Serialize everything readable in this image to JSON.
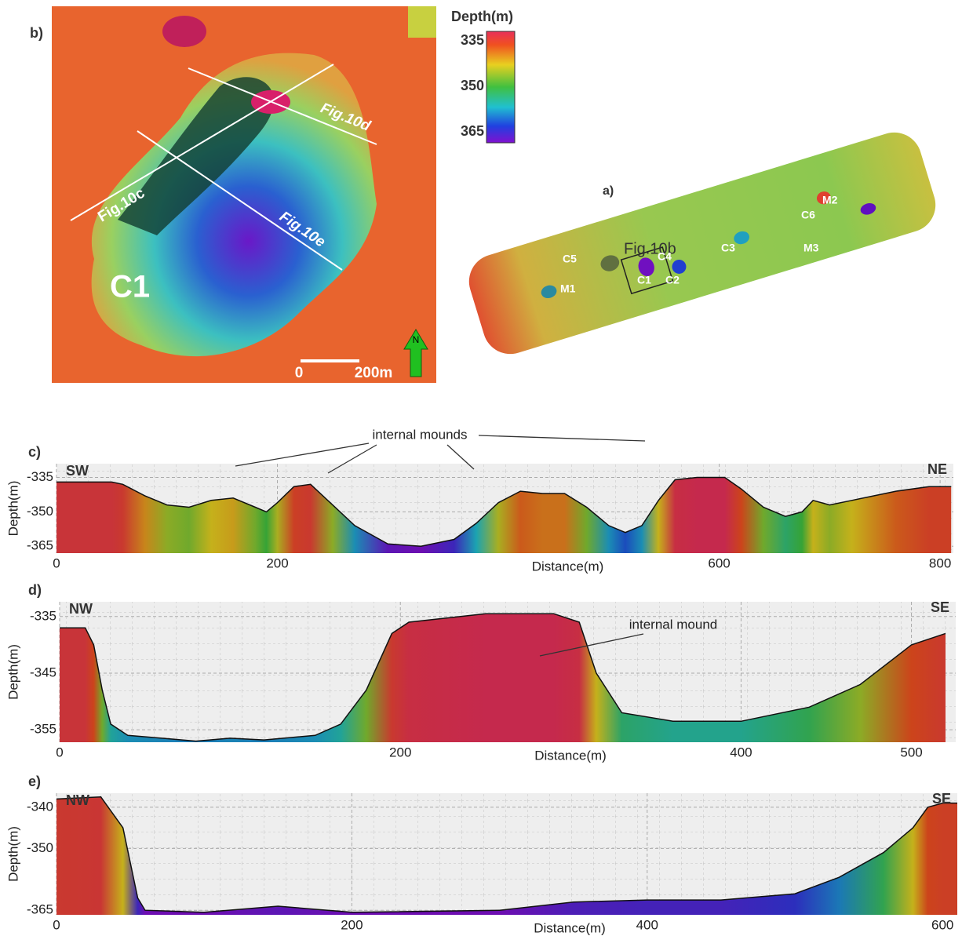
{
  "map_b": {
    "panel_label": "b)",
    "crater_label": "C1",
    "profile_labels": [
      "Fig.10c",
      "Fig.10d",
      "Fig.10e"
    ],
    "scale_labels": [
      "0",
      "200m"
    ],
    "north": "N"
  },
  "map_a": {
    "panel_label": "a)",
    "box_label": "Fig.10b",
    "site_labels": [
      "C1",
      "C2",
      "C3",
      "C4",
      "C5",
      "C6",
      "M1",
      "M2",
      "M3"
    ]
  },
  "colorbar": {
    "title": "Depth(m)",
    "ticks": [
      335,
      350,
      365
    ]
  },
  "chart_data": [
    {
      "type": "area",
      "panel_label": "c)",
      "left_label": "SW",
      "right_label": "NE",
      "annotation": "internal mounds",
      "xlabel": "Distance(m)",
      "ylabel": "Depth(m)",
      "x": [
        0,
        50,
        60,
        80,
        100,
        120,
        140,
        160,
        180,
        190,
        200,
        215,
        230,
        250,
        270,
        300,
        330,
        360,
        380,
        400,
        420,
        440,
        460,
        480,
        500,
        515,
        530,
        545,
        560,
        580,
        605,
        620,
        640,
        660,
        675,
        685,
        700,
        720,
        760,
        790,
        810
      ],
      "values": [
        -337,
        -337,
        -338,
        -343,
        -347,
        -348,
        -345,
        -344,
        -348,
        -350,
        -346,
        -339,
        -338,
        -347,
        -356,
        -364,
        -365,
        -362,
        -355,
        -346,
        -341,
        -342,
        -342,
        -348,
        -356,
        -359,
        -356,
        -345,
        -336,
        -335,
        -335,
        -340,
        -348,
        -352,
        -350,
        -345,
        -347,
        -345,
        -341,
        -339,
        -339
      ],
      "xlim": [
        0,
        812
      ],
      "ylim": [
        -368,
        -329
      ],
      "xticks": [
        0,
        200,
        600,
        800
      ],
      "yticks": [
        -335,
        -350,
        -365
      ],
      "grid": true
    },
    {
      "type": "area",
      "panel_label": "d)",
      "left_label": "NW",
      "right_label": "SE",
      "annotation": "internal mound",
      "xlabel": "Distance(m)",
      "ylabel": "Depth(m)",
      "x": [
        0,
        15,
        20,
        25,
        30,
        40,
        60,
        80,
        100,
        120,
        150,
        165,
        180,
        195,
        205,
        250,
        290,
        305,
        315,
        330,
        360,
        400,
        440,
        470,
        500,
        520
      ],
      "values": [
        -337,
        -337,
        -340,
        -348,
        -354,
        -356,
        -356.5,
        -357,
        -356.5,
        -356.8,
        -356,
        -354,
        -348,
        -338,
        -336,
        -334.5,
        -334.5,
        -336,
        -345,
        -352,
        -353.5,
        -353.5,
        -351,
        -347,
        -340,
        -338
      ],
      "xlim": [
        0,
        526
      ],
      "ylim": [
        -357.2,
        -332.4
      ],
      "xticks": [
        0,
        200,
        400,
        500
      ],
      "yticks": [
        -335,
        -345,
        -355
      ],
      "grid": true
    },
    {
      "type": "area",
      "panel_label": "e)",
      "left_label": "NW",
      "right_label": "SE",
      "xlabel": "Distance(m)",
      "ylabel": "Depth(m)",
      "x": [
        0,
        30,
        45,
        55,
        60,
        100,
        150,
        200,
        300,
        350,
        400,
        450,
        500,
        530,
        560,
        580,
        590,
        600,
        610
      ],
      "values": [
        -338,
        -337.5,
        -345,
        -362,
        -365,
        -365.5,
        -364,
        -365.5,
        -365,
        -363,
        -362.5,
        -362.5,
        -361,
        -357,
        -351,
        -345,
        -340,
        -339,
        -339
      ],
      "xlim": [
        0,
        610
      ],
      "ylim": [
        -366.1,
        -336.6
      ],
      "xticks": [
        0,
        200,
        400,
        600
      ],
      "yticks": [
        -340,
        -350,
        -365
      ],
      "grid": true
    }
  ]
}
